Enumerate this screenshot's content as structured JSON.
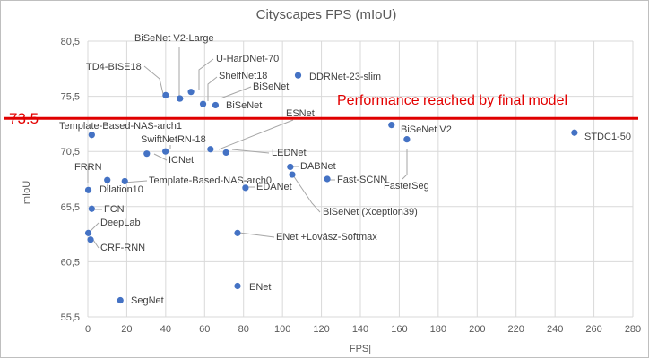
{
  "chart_data": {
    "type": "scatter",
    "title": "Cityscapes FPS (mIoU)",
    "xlabel": "FPS|",
    "ylabel": "mIoU",
    "xlim": [
      0,
      280
    ],
    "ylim": [
      55.5,
      80.5
    ],
    "x_ticks": [
      "0",
      "20",
      "40",
      "60",
      "80",
      "100",
      "120",
      "140",
      "160",
      "180",
      "200",
      "220",
      "240",
      "260",
      "280"
    ],
    "y_ticks": [
      "55,5",
      "60,5",
      "65,5",
      "70,5",
      "75,5",
      "80,5"
    ],
    "grid": true,
    "reference_line": {
      "value": 73.5,
      "value_label": "73.5",
      "label": "Performance reached by final model",
      "color": "#e00000"
    },
    "point_color": "#4472c4",
    "points": [
      {
        "label": "BiSeNet V2-Large",
        "x": 47.3,
        "y": 75.3
      },
      {
        "label": "U-HarDNet-70",
        "x": 53,
        "y": 75.9
      },
      {
        "label": "TD4-BISE18",
        "x": 40,
        "y": 75.6
      },
      {
        "label": "ShelfNet18",
        "x": 59.2,
        "y": 74.8
      },
      {
        "label": "DDRNet-23-slim",
        "x": 108,
        "y": 77.4
      },
      {
        "label": "BiSeNet",
        "x": 65.6,
        "y": 74.7
      },
      {
        "label": "BiSeNet",
        "x": 47.3,
        "y": 75.3
      },
      {
        "label": "ESNet",
        "x": 63,
        "y": 70.7
      },
      {
        "label": "Template-Based-NAS-arch1",
        "x": 2,
        "y": 72.0
      },
      {
        "label": "SwiftNetRN-18",
        "x": 39.9,
        "y": 70.5
      },
      {
        "label": "ICNet",
        "x": 30.3,
        "y": 70.3
      },
      {
        "label": "LEDNet",
        "x": 71,
        "y": 70.4
      },
      {
        "label": "BiSeNet V2",
        "x": 156,
        "y": 72.9
      },
      {
        "label": "STDC1-50",
        "x": 250,
        "y": 72.2
      },
      {
        "label": "FasterSeg",
        "x": 163.9,
        "y": 71.6
      },
      {
        "label": "FRRN",
        "x": 0.25,
        "y": 67.0
      },
      {
        "label": "Template-Based-NAS-arch0",
        "x": 19,
        "y": 67.8
      },
      {
        "label": "Dilation10",
        "x": 10,
        "y": 67.9
      },
      {
        "label": "DABNet",
        "x": 104,
        "y": 69.1
      },
      {
        "label": "EDANet",
        "x": 81,
        "y": 67.2
      },
      {
        "label": "Fast-SCNN",
        "x": 123,
        "y": 68.0
      },
      {
        "label": "BiSeNet (Xception39)",
        "x": 105,
        "y": 68.4
      },
      {
        "label": "FCN",
        "x": 2,
        "y": 65.3
      },
      {
        "label": "DeepLab",
        "x": 0.25,
        "y": 63.1
      },
      {
        "label": "CRF-RNN",
        "x": 1.4,
        "y": 62.5
      },
      {
        "label": "ENet +Lovász-Softmax",
        "x": 76.9,
        "y": 63.1
      },
      {
        "label": "ENet",
        "x": 76.9,
        "y": 58.3
      },
      {
        "label": "SegNet",
        "x": 16.7,
        "y": 57.0
      }
    ]
  }
}
